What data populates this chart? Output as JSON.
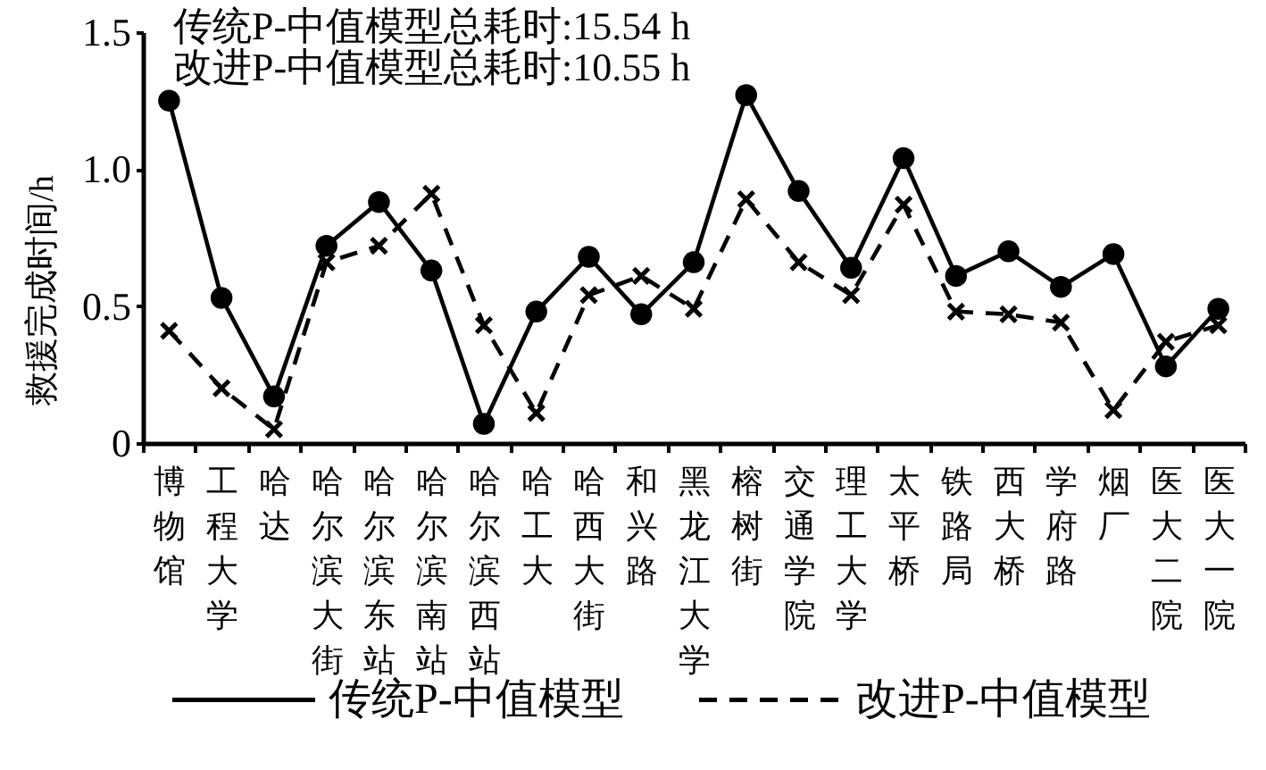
{
  "chart_data": {
    "type": "line",
    "ylabel": "救援完成时间/h",
    "categories": [
      "博物馆",
      "工程大学",
      "哈达",
      "哈尔滨大街",
      "哈尔滨东站",
      "哈尔滨南站",
      "哈尔滨西站",
      "哈工大",
      "哈西大街",
      "和兴路",
      "黑龙江大学",
      "榕树街",
      "交通学院",
      "理工大学",
      "太平桥",
      "铁路局",
      "西大桥",
      "学府路",
      "烟厂",
      "医大二院",
      "医大一院"
    ],
    "ylim": [
      0,
      1.5
    ],
    "yticks": [
      0,
      0.5,
      {
        "value": 1,
        "label": "1.0"
      },
      1.5
    ],
    "series": [
      {
        "name": "传统P-中值模型",
        "color": "#000000",
        "marker": "circle",
        "line_style": "solid",
        "values": [
          1.25,
          0.53,
          0.17,
          0.72,
          0.88,
          0.63,
          0.07,
          0.48,
          0.68,
          0.47,
          0.66,
          1.27,
          0.92,
          0.64,
          1.04,
          0.61,
          0.7,
          0.57,
          0.69,
          0.28,
          0.49
        ]
      },
      {
        "name": "改进P-中值模型",
        "color": "#000000",
        "marker": "cross",
        "line_style": "dashed",
        "values": [
          0.41,
          0.2,
          0.05,
          0.66,
          0.72,
          0.91,
          0.43,
          0.11,
          0.54,
          0.61,
          0.49,
          0.89,
          0.66,
          0.54,
          0.87,
          0.48,
          0.47,
          0.44,
          0.12,
          0.37,
          0.43
        ]
      }
    ],
    "annotations": [
      "传统P-中值模型总耗时:15.54 h",
      "改进P-中值模型总耗时:10.55 h"
    ],
    "legend": "bottom"
  }
}
